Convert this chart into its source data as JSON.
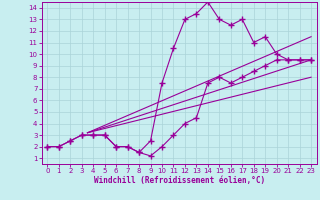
{
  "xlabel": "Windchill (Refroidissement éolien,°C)",
  "xlim": [
    -0.5,
    23.5
  ],
  "ylim": [
    0.5,
    14.5
  ],
  "xticks": [
    0,
    1,
    2,
    3,
    4,
    5,
    6,
    7,
    8,
    9,
    10,
    11,
    12,
    13,
    14,
    15,
    16,
    17,
    18,
    19,
    20,
    21,
    22,
    23
  ],
  "yticks": [
    1,
    2,
    3,
    4,
    5,
    6,
    7,
    8,
    9,
    10,
    11,
    12,
    13,
    14
  ],
  "background_color": "#c8eef0",
  "grid_color": "#aad4d8",
  "line_color": "#990099",
  "curve1_x": [
    0,
    1,
    2,
    3,
    4,
    5,
    6,
    7,
    8,
    9,
    10,
    11,
    12,
    13,
    14,
    15,
    16,
    17,
    18,
    19,
    20,
    21,
    22,
    23
  ],
  "curve1_y": [
    2,
    2,
    2.5,
    3,
    3,
    3,
    2,
    2,
    1.5,
    1.2,
    2,
    3,
    4,
    4.5,
    7.5,
    8,
    7.5,
    8,
    8.5,
    9,
    9.5,
    9.5,
    9.5,
    9.5
  ],
  "curve2_x": [
    0,
    1,
    2,
    3,
    4,
    5,
    6,
    7,
    8,
    9,
    10,
    11,
    12,
    13,
    14,
    15,
    16,
    17,
    18,
    19,
    20,
    21,
    22,
    23
  ],
  "curve2_y": [
    2,
    2,
    2.5,
    3,
    3,
    3,
    2,
    2,
    1.5,
    2.5,
    7.5,
    10.5,
    13,
    13.5,
    14.5,
    13,
    12.5,
    13,
    11,
    11.5,
    10,
    9.5,
    9.5,
    9.5
  ],
  "line1_x": [
    3.5,
    23
  ],
  "line1_y": [
    3.2,
    11.5
  ],
  "line2_x": [
    3.5,
    23
  ],
  "line2_y": [
    3.2,
    9.5
  ],
  "line3_x": [
    3.5,
    23
  ],
  "line3_y": [
    3.2,
    8.0
  ],
  "marker": "+",
  "markersize": 4,
  "linewidth": 0.8,
  "tick_fontsize": 5.0,
  "xlabel_fontsize": 5.5
}
